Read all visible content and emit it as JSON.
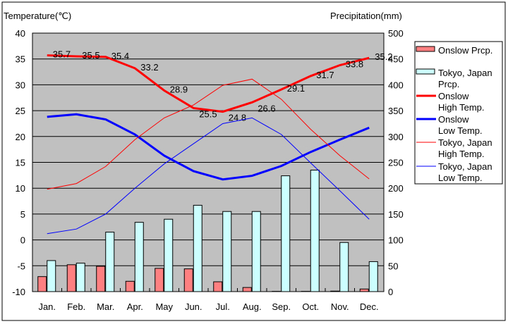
{
  "chart_data": {
    "type": "bar+line",
    "left_axis_title": "Temperature(℃)",
    "right_axis_title": "Precipitation(mm)",
    "ylim_left": [
      -10,
      40
    ],
    "ylim_right": [
      0,
      500
    ],
    "left_ticks": [
      "40",
      "35",
      "30",
      "25",
      "20",
      "15",
      "10",
      "5",
      "0",
      "-5",
      "-10"
    ],
    "right_ticks": [
      "500",
      "450",
      "400",
      "350",
      "300",
      "250",
      "200",
      "150",
      "100",
      "50",
      "0"
    ],
    "categories": [
      "Jan.",
      "Feb.",
      "Mar.",
      "Apr.",
      "May",
      "Jun.",
      "Jul.",
      "Aug.",
      "Sep.",
      "Oct.",
      "Nov.",
      "Dec."
    ],
    "grid": true,
    "legend_position": "right",
    "bars": [
      {
        "name": "Onslow Prcp.",
        "legend": [
          "Onslow Prcp."
        ],
        "color": "#ff8080",
        "values": [
          29,
          52,
          49,
          20,
          45,
          44,
          19,
          8,
          0.5,
          0.5,
          1,
          5
        ]
      },
      {
        "name": "Tokyo, Japan Prcp.",
        "legend": [
          "Tokyo, Japan",
          "Prcp."
        ],
        "color": "#ccffff",
        "values": [
          60,
          55,
          115,
          134,
          140,
          167,
          155,
          155,
          224,
          235,
          95,
          58
        ]
      }
    ],
    "lines": [
      {
        "name": "Onslow High Temp.",
        "legend": [
          "Onslow",
          " High Temp."
        ],
        "color": "#ff0000",
        "width": 3,
        "values": [
          35.7,
          35.5,
          35.4,
          33.2,
          28.9,
          25.5,
          24.8,
          26.6,
          29.1,
          31.7,
          33.8,
          35.2
        ],
        "labels": [
          "35.7",
          "35.5",
          "35.4",
          "33.2",
          "28.9",
          "25.5",
          "24.8",
          "26.6",
          "29.1",
          "31.7",
          "33.8",
          "35.2"
        ]
      },
      {
        "name": "Onslow Low Temp.",
        "legend": [
          "Onslow",
          " Low Temp."
        ],
        "color": "#0000ff",
        "width": 3,
        "values": [
          23.8,
          24.3,
          23.3,
          20.4,
          16.3,
          13.3,
          11.7,
          12.4,
          14.3,
          17.0,
          19.4,
          21.7
        ]
      },
      {
        "name": "Tokyo, Japan High Temp.",
        "legend": [
          "Tokyo, Japan",
          "High Temp."
        ],
        "color": "#ff0000",
        "width": 1,
        "values": [
          9.8,
          10.9,
          14.2,
          19.4,
          23.6,
          26.1,
          29.9,
          31.1,
          27.2,
          21.4,
          16.3,
          11.8
        ]
      },
      {
        "name": "Tokyo, Japan Low Temp.",
        "legend": [
          "Tokyo, Japan",
          "Low Temp."
        ],
        "color": "#0000ff",
        "width": 1,
        "values": [
          1.2,
          2.1,
          5.0,
          10.0,
          14.7,
          18.6,
          22.5,
          23.6,
          20.4,
          14.9,
          9.5,
          4.0
        ]
      }
    ]
  }
}
